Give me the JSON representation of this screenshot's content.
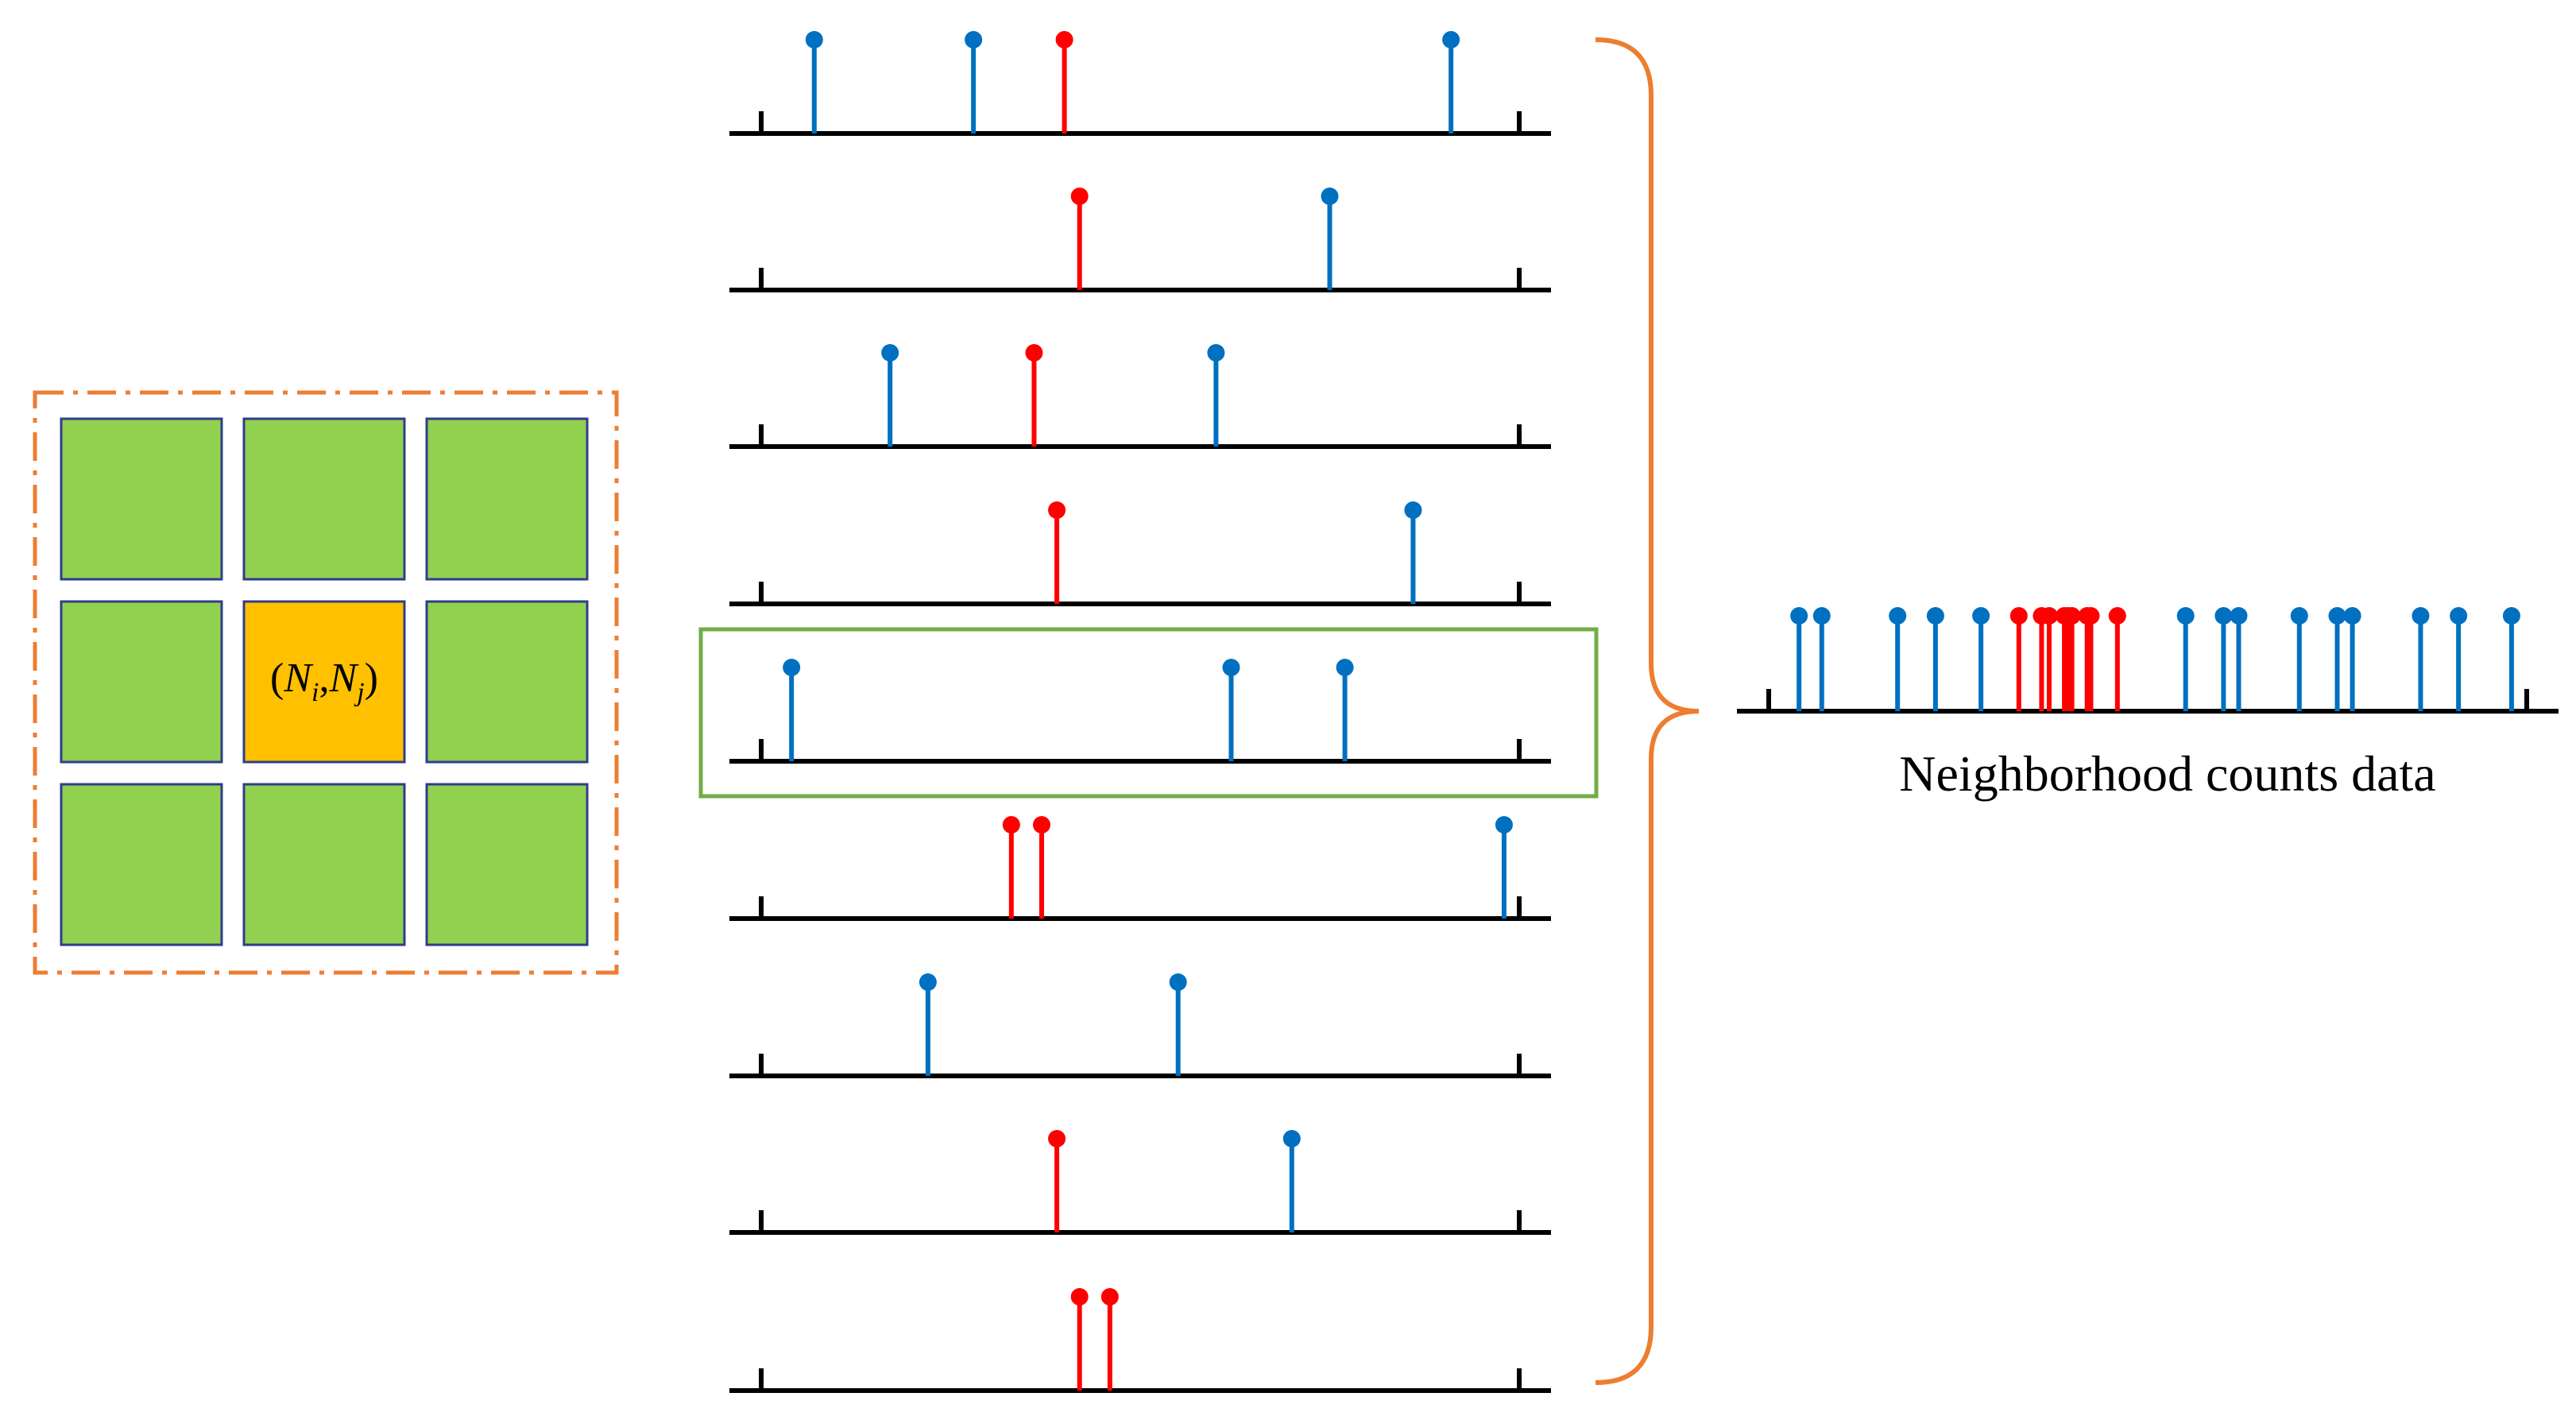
{
  "colors": {
    "frame": "#ED7D31",
    "cell": "#92D050",
    "cell_border": "#2F3D8C",
    "center_cell": "#FFC000",
    "highlight": "#70AD47",
    "stem_blue": "#0070C0",
    "stem_red": "#FF0000",
    "axis": "#000000"
  },
  "grid": {
    "rows": 3,
    "cols": 3,
    "center_label_open": "(",
    "center_label_N1": "N",
    "center_label_i": "i",
    "center_label_comma": ",",
    "center_label_N2": "N",
    "center_label_j": "j",
    "center_label_close": ")"
  },
  "chart_data": {
    "type": "stem",
    "title": "",
    "xlim": [
      0,
      100
    ],
    "rows": [
      {
        "highlighted": false,
        "stems": [
          {
            "x": 7,
            "color": "blue"
          },
          {
            "x": 28,
            "color": "blue"
          },
          {
            "x": 40,
            "color": "red"
          },
          {
            "x": 91,
            "color": "blue"
          }
        ]
      },
      {
        "highlighted": false,
        "stems": [
          {
            "x": 42,
            "color": "red"
          },
          {
            "x": 75,
            "color": "blue"
          }
        ]
      },
      {
        "highlighted": false,
        "stems": [
          {
            "x": 17,
            "color": "blue"
          },
          {
            "x": 36,
            "color": "red"
          },
          {
            "x": 60,
            "color": "blue"
          }
        ]
      },
      {
        "highlighted": false,
        "stems": [
          {
            "x": 39,
            "color": "red"
          },
          {
            "x": 86,
            "color": "blue"
          }
        ]
      },
      {
        "highlighted": true,
        "stems": [
          {
            "x": 4,
            "color": "blue"
          },
          {
            "x": 62,
            "color": "blue"
          },
          {
            "x": 77,
            "color": "blue"
          }
        ]
      },
      {
        "highlighted": false,
        "stems": [
          {
            "x": 33,
            "color": "red"
          },
          {
            "x": 37,
            "color": "red"
          },
          {
            "x": 98,
            "color": "blue"
          }
        ]
      },
      {
        "highlighted": false,
        "stems": [
          {
            "x": 22,
            "color": "blue"
          },
          {
            "x": 55,
            "color": "blue"
          }
        ]
      },
      {
        "highlighted": false,
        "stems": [
          {
            "x": 39,
            "color": "red"
          },
          {
            "x": 70,
            "color": "blue"
          }
        ]
      },
      {
        "highlighted": false,
        "stems": [
          {
            "x": 42,
            "color": "red"
          },
          {
            "x": 46,
            "color": "red"
          }
        ]
      }
    ],
    "aggregate": {
      "caption": "Neighborhood counts data",
      "stems": [
        {
          "x": 4,
          "color": "blue"
        },
        {
          "x": 7,
          "color": "blue"
        },
        {
          "x": 17,
          "color": "blue"
        },
        {
          "x": 22,
          "color": "blue"
        },
        {
          "x": 28,
          "color": "blue"
        },
        {
          "x": 33,
          "color": "red"
        },
        {
          "x": 36,
          "color": "red"
        },
        {
          "x": 37,
          "color": "red"
        },
        {
          "x": 39,
          "color": "red"
        },
        {
          "x": 39.5,
          "color": "red"
        },
        {
          "x": 40,
          "color": "red"
        },
        {
          "x": 42,
          "color": "red"
        },
        {
          "x": 42.5,
          "color": "red"
        },
        {
          "x": 46,
          "color": "red"
        },
        {
          "x": 55,
          "color": "blue"
        },
        {
          "x": 60,
          "color": "blue"
        },
        {
          "x": 62,
          "color": "blue"
        },
        {
          "x": 70,
          "color": "blue"
        },
        {
          "x": 75,
          "color": "blue"
        },
        {
          "x": 77,
          "color": "blue"
        },
        {
          "x": 86,
          "color": "blue"
        },
        {
          "x": 91,
          "color": "blue"
        },
        {
          "x": 98,
          "color": "blue"
        }
      ]
    }
  }
}
